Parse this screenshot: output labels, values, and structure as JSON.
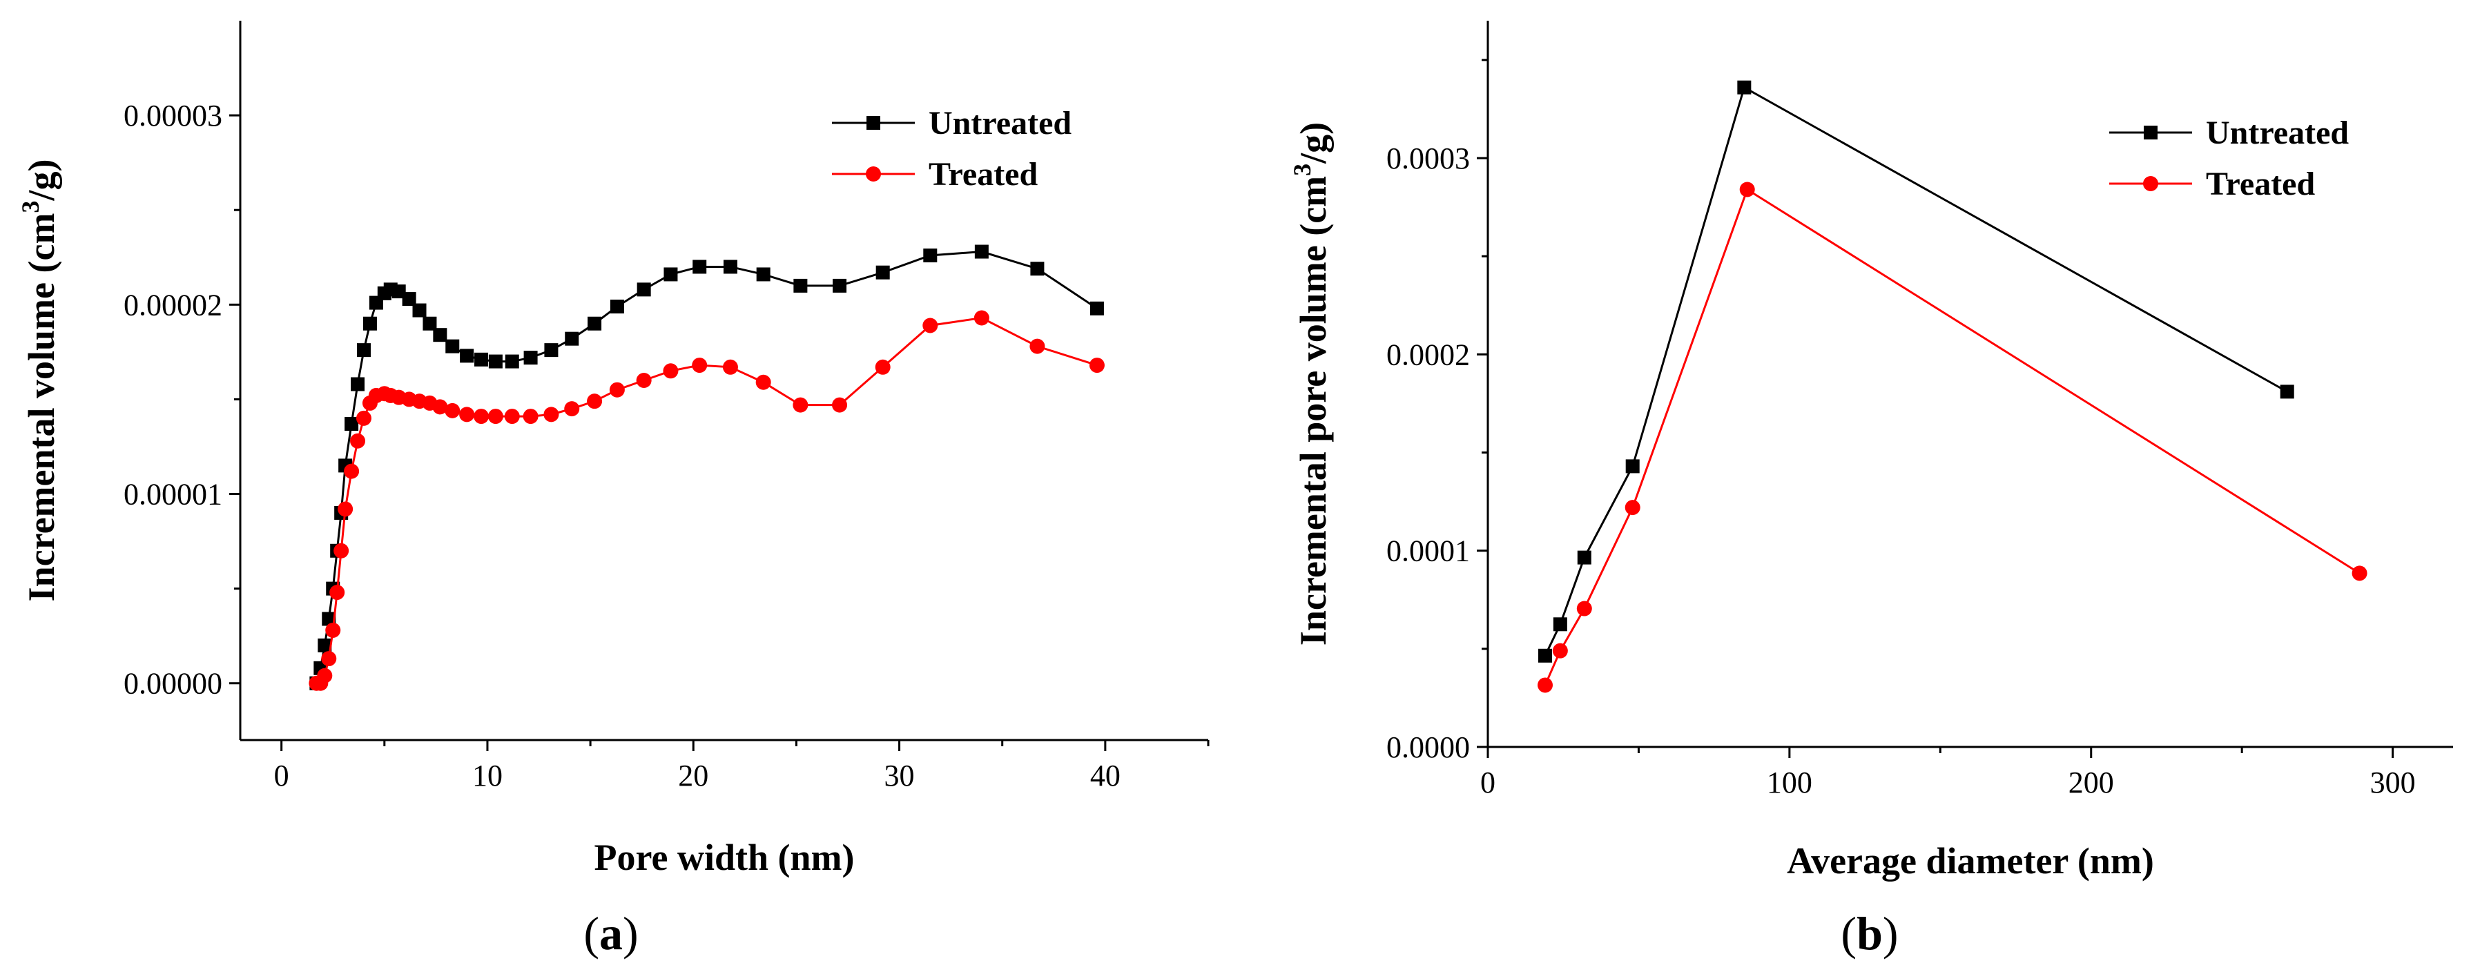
{
  "chart_data": [
    {
      "type": "line",
      "caption_open": "(",
      "caption_letter": "a",
      "caption_close": ")",
      "xlabel": "Pore width (nm)",
      "ylabel": "Incremental volume (cm³/g)",
      "ylabel_parts": [
        "Incremental volume (cm",
        "3",
        "/g)"
      ],
      "xlim": [
        -2,
        45
      ],
      "ylim": [
        -3e-06,
        3.5e-05
      ],
      "xticks": [
        0,
        10,
        20,
        30,
        40
      ],
      "xtick_labels": [
        "0",
        "10",
        "20",
        "30",
        "40"
      ],
      "yticks": [
        0,
        1e-05,
        2e-05,
        3e-05
      ],
      "ytick_labels": [
        "0.00000",
        "0.00001",
        "0.00002",
        "0.00003"
      ],
      "legend": [
        "Untreated",
        "Treated"
      ],
      "legend_position": "top-right",
      "series": [
        {
          "name": "Untreated",
          "color": "#000000",
          "marker": "square",
          "x": [
            1.7,
            1.9,
            2.1,
            2.3,
            2.5,
            2.7,
            2.9,
            3.1,
            3.4,
            3.7,
            4.0,
            4.3,
            4.6,
            5.0,
            5.3,
            5.7,
            6.2,
            6.7,
            7.2,
            7.7,
            8.3,
            9.0,
            9.7,
            10.4,
            11.2,
            12.1,
            13.1,
            14.1,
            15.2,
            16.3,
            17.6,
            18.9,
            20.3,
            21.8,
            23.4,
            25.2,
            27.1,
            29.2,
            31.5,
            34.0,
            36.7,
            39.6
          ],
          "values": [
            0.0,
            8e-07,
            2e-06,
            3.4e-06,
            5e-06,
            7e-06,
            9e-06,
            1.15e-05,
            1.37e-05,
            1.58e-05,
            1.76e-05,
            1.9e-05,
            2.01e-05,
            2.06e-05,
            2.08e-05,
            2.07e-05,
            2.03e-05,
            1.97e-05,
            1.9e-05,
            1.84e-05,
            1.78e-05,
            1.73e-05,
            1.71e-05,
            1.7e-05,
            1.7e-05,
            1.72e-05,
            1.76e-05,
            1.82e-05,
            1.9e-05,
            1.99e-05,
            2.08e-05,
            2.16e-05,
            2.2e-05,
            2.2e-05,
            2.16e-05,
            2.1e-05,
            2.1e-05,
            2.17e-05,
            2.26e-05,
            2.28e-05,
            2.19e-05,
            1.98e-05
          ]
        },
        {
          "name": "Treated",
          "color": "#ff0000",
          "marker": "circle",
          "x": [
            1.7,
            1.9,
            2.1,
            2.3,
            2.5,
            2.7,
            2.9,
            3.1,
            3.4,
            3.7,
            4.0,
            4.3,
            4.6,
            5.0,
            5.3,
            5.7,
            6.2,
            6.7,
            7.2,
            7.7,
            8.3,
            9.0,
            9.7,
            10.4,
            11.2,
            12.1,
            13.1,
            14.1,
            15.2,
            16.3,
            17.6,
            18.9,
            20.3,
            21.8,
            23.4,
            25.2,
            27.1,
            29.2,
            31.5,
            34.0,
            36.7,
            39.6
          ],
          "values": [
            0.0,
            0.0,
            4e-07,
            1.3e-06,
            2.8e-06,
            4.8e-06,
            7e-06,
            9.2e-06,
            1.12e-05,
            1.28e-05,
            1.4e-05,
            1.48e-05,
            1.52e-05,
            1.53e-05,
            1.52e-05,
            1.51e-05,
            1.5e-05,
            1.49e-05,
            1.48e-05,
            1.46e-05,
            1.44e-05,
            1.42e-05,
            1.41e-05,
            1.41e-05,
            1.41e-05,
            1.41e-05,
            1.42e-05,
            1.45e-05,
            1.49e-05,
            1.55e-05,
            1.6e-05,
            1.65e-05,
            1.68e-05,
            1.67e-05,
            1.59e-05,
            1.47e-05,
            1.47e-05,
            1.67e-05,
            1.89e-05,
            1.93e-05,
            1.78e-05,
            1.68e-05
          ]
        }
      ]
    },
    {
      "type": "line",
      "caption_open": "(",
      "caption_letter": "b",
      "caption_close": ")",
      "xlabel": "Average diameter (nm)",
      "ylabel": "Incremental pore volume  (cm³/g)",
      "ylabel_parts": [
        "Incremental pore volume  (cm",
        "3",
        "/g)"
      ],
      "xlim": [
        0,
        320
      ],
      "ylim": [
        0,
        0.00037
      ],
      "xticks": [
        0,
        100,
        200,
        300
      ],
      "xtick_labels": [
        "0",
        "100",
        "200",
        "300"
      ],
      "yticks": [
        0,
        0.0001,
        0.0002,
        0.0003
      ],
      "ytick_labels": [
        "0.0000",
        "0.0001",
        "0.0002",
        "0.0003"
      ],
      "legend": [
        "Untreated",
        "Treated"
      ],
      "legend_position": "top-right",
      "series": [
        {
          "name": "Untreated",
          "color": "#000000",
          "marker": "square",
          "x": [
            19,
            24,
            32,
            48,
            85,
            265
          ],
          "values": [
            4.65e-05,
            6.25e-05,
            9.65e-05,
            0.000143,
            0.000336,
            0.000181
          ]
        },
        {
          "name": "Treated",
          "color": "#ff0000",
          "marker": "circle",
          "x": [
            19,
            24,
            32,
            48,
            86,
            289
          ],
          "values": [
            3.15e-05,
            4.9e-05,
            7.05e-05,
            0.000122,
            0.000284,
            8.85e-05
          ]
        }
      ]
    }
  ]
}
